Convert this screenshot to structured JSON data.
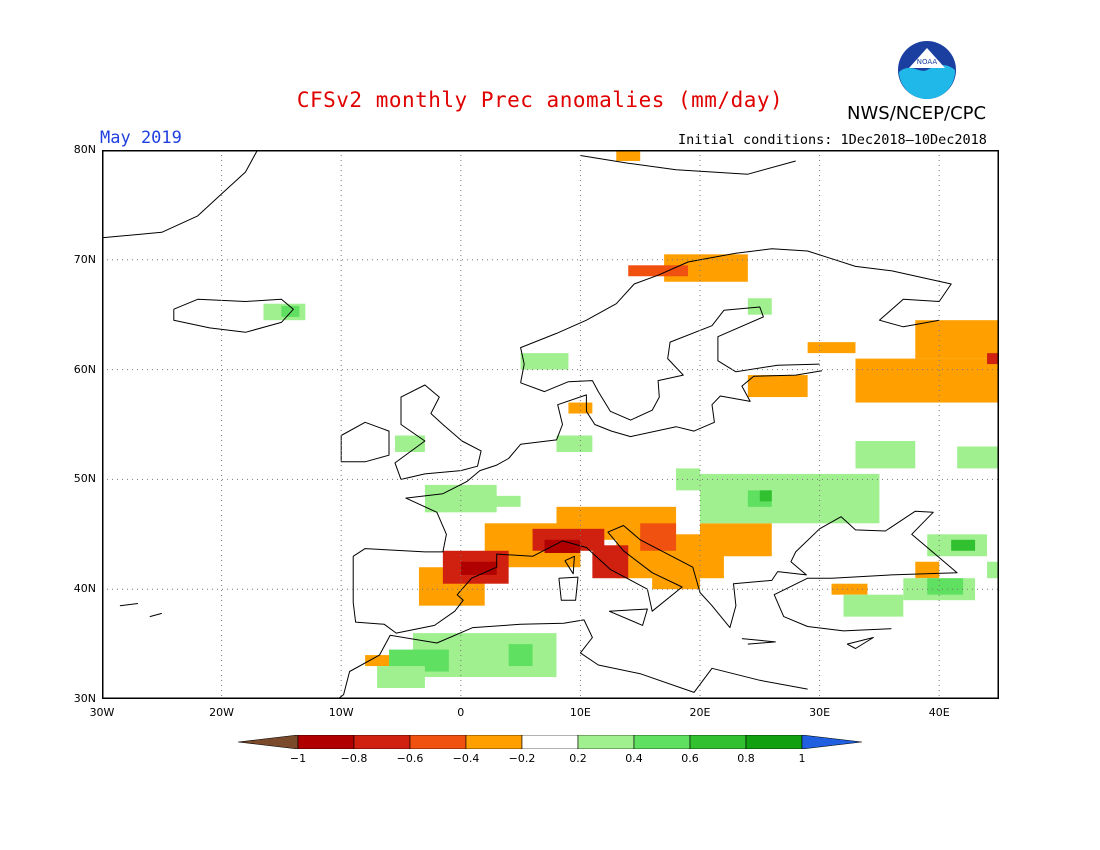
{
  "map": {
    "title": "CFSv2 monthly Prec anomalies (mm/day)",
    "period": "May 2019",
    "initial_conditions": "Initial conditions: 1Dec2018–10Dec2018",
    "agency": "NWS/NCEP/CPC",
    "logo_text": "NOAA",
    "lat_labels": [
      "80N",
      "70N",
      "60N",
      "50N",
      "40N",
      "30N"
    ],
    "lon_labels": [
      "30W",
      "20W",
      "10W",
      "0",
      "10E",
      "20E",
      "30E",
      "40E"
    ],
    "extent": {
      "lon_min": -30,
      "lon_max": 45,
      "lat_min": 30,
      "lat_max": 80
    }
  },
  "colorbar": {
    "ticks": [
      "-1",
      "-0.8",
      "-0.6",
      "-0.4",
      "-0.2",
      "0.2",
      "0.4",
      "0.6",
      "0.8",
      "1"
    ],
    "colors": {
      "lt_-1": "#7a4a2a",
      "-1_-0.8": "#b00000",
      "-0.8_-0.6": "#d02010",
      "-0.6_-0.4": "#f05010",
      "-0.4_-0.2": "#ffa000",
      "-0.2_0.2": "#ffffff",
      "0.2_0.4": "#a0f090",
      "0.4_0.6": "#60e060",
      "0.6_0.8": "#30c030",
      "0.8_1": "#10a010",
      "gt_1": "#2060e0"
    }
  }
}
